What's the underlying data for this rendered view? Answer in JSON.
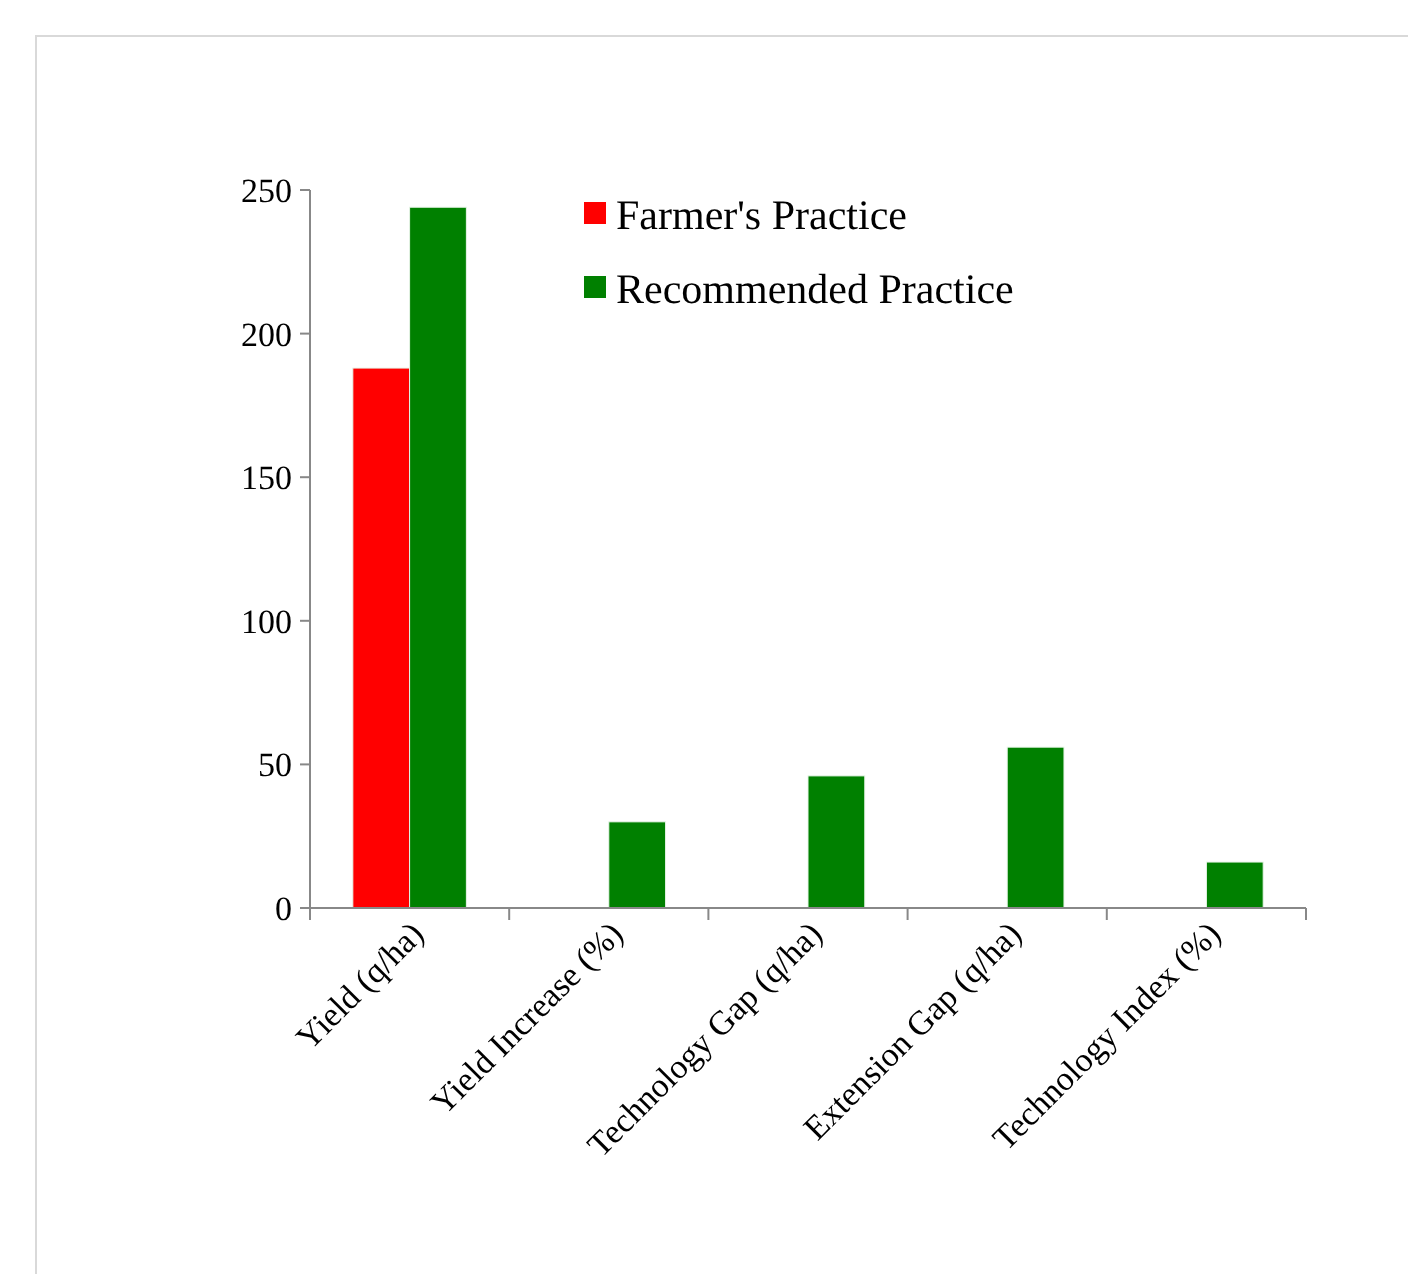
{
  "chart_data": {
    "type": "bar",
    "categories": [
      "Yield (q/ha)",
      "Yield Increase (%)",
      "Technology Gap (q/ha)",
      "Extension Gap (q/ha)",
      "Technology Index (%)"
    ],
    "series": [
      {
        "name": "Farmer's Practice",
        "color": "#ff0000",
        "values": [
          188,
          null,
          null,
          null,
          null
        ]
      },
      {
        "name": "Recommended Practice",
        "color": "#008000",
        "values": [
          244,
          30,
          46,
          56,
          16
        ]
      }
    ],
    "ylim": [
      0,
      250
    ],
    "yticks": [
      0,
      50,
      100,
      150,
      200,
      250
    ],
    "grid": false,
    "legend": "top right"
  }
}
